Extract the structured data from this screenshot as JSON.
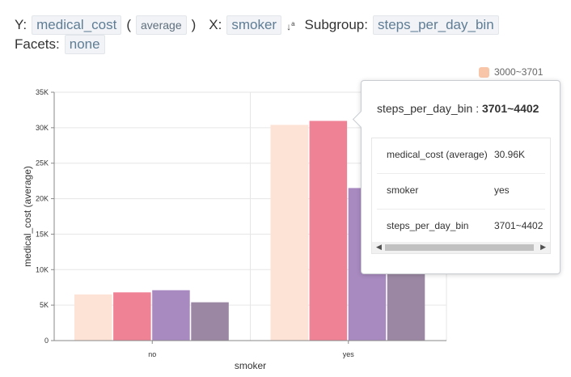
{
  "config": {
    "y_label": "Y:",
    "y_field": "medical_cost",
    "y_agg": "average",
    "x_label": "X:",
    "x_field": "smoker",
    "sort_icon": "sort-ascending-icon",
    "subgroup_label": "Subgroup:",
    "subgroup_field": "steps_per_day_bin",
    "facets_label": "Facets:",
    "facets_value": "none"
  },
  "legend": {
    "items": [
      {
        "label": "3000~3701",
        "color": "#f8c5a8"
      }
    ]
  },
  "chart_data": {
    "type": "bar",
    "xlabel": "smoker",
    "ylabel": "medical_cost (average)",
    "ylim": [
      0,
      35000
    ],
    "yticks": [
      "0",
      "5K",
      "10K",
      "15K",
      "20K",
      "25K",
      "30K",
      "35K"
    ],
    "categories": [
      "no",
      "yes"
    ],
    "series": [
      {
        "values": [
          6500,
          30400
        ],
        "color": "#fde3d6"
      },
      {
        "values": [
          6800,
          30960
        ],
        "color": "#f08295"
      },
      {
        "values": [
          7100,
          21500
        ],
        "color": "#a88ac0"
      },
      {
        "values": [
          5400,
          11000
        ],
        "color": "#9b87a3"
      }
    ],
    "grid": true
  },
  "tooltip": {
    "title_key": "steps_per_day_bin",
    "title_value": "3701~4402",
    "rows": [
      {
        "key": "medical_cost (average)",
        "value": "30.96K"
      },
      {
        "key": "smoker",
        "value": "yes"
      },
      {
        "key": "steps_per_day_bin",
        "value": "3701~4402"
      }
    ]
  }
}
